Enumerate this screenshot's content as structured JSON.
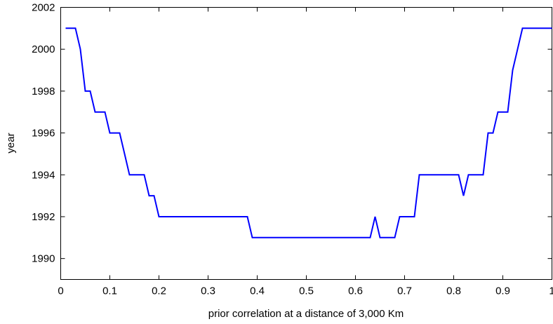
{
  "chart_data": {
    "type": "line",
    "title": "",
    "xlabel": "prior correlation at a distance of 3,000 Km",
    "ylabel": "year",
    "xlim": [
      0,
      1
    ],
    "ylim": [
      1989,
      2002
    ],
    "grid": false,
    "legend": "none",
    "line_color": "#0000ff",
    "x_ticks": [
      0,
      0.1,
      0.2,
      0.3,
      0.4,
      0.5,
      0.6,
      0.7,
      0.8,
      0.9,
      1
    ],
    "x_tick_labels": [
      "0",
      "0.1",
      "0.2",
      "0.3",
      "0.4",
      "0.5",
      "0.6",
      "0.7",
      "0.8",
      "0.9",
      "1"
    ],
    "y_ticks": [
      1990,
      1992,
      1994,
      1996,
      1998,
      2000,
      2002
    ],
    "y_tick_labels": [
      "1990",
      "1992",
      "1994",
      "1996",
      "1998",
      "2000",
      "2002"
    ],
    "series": [
      {
        "x": [
          0.01,
          0.02,
          0.03,
          0.04,
          0.05,
          0.06,
          0.07,
          0.08,
          0.09,
          0.1,
          0.11,
          0.12,
          0.13,
          0.14,
          0.15,
          0.16,
          0.17,
          0.18,
          0.19,
          0.2,
          0.21,
          0.22,
          0.23,
          0.24,
          0.25,
          0.26,
          0.27,
          0.28,
          0.29,
          0.3,
          0.31,
          0.32,
          0.33,
          0.34,
          0.35,
          0.36,
          0.37,
          0.38,
          0.39,
          0.4,
          0.41,
          0.42,
          0.43,
          0.44,
          0.45,
          0.46,
          0.47,
          0.48,
          0.49,
          0.5,
          0.51,
          0.52,
          0.53,
          0.54,
          0.55,
          0.56,
          0.57,
          0.58,
          0.59,
          0.6,
          0.61,
          0.62,
          0.63,
          0.64,
          0.65,
          0.66,
          0.67,
          0.68,
          0.69,
          0.7,
          0.71,
          0.72,
          0.73,
          0.74,
          0.75,
          0.76,
          0.77,
          0.78,
          0.79,
          0.8,
          0.81,
          0.82,
          0.83,
          0.84,
          0.85,
          0.86,
          0.87,
          0.88,
          0.89,
          0.9,
          0.91,
          0.92,
          0.93,
          0.94,
          0.95,
          0.96,
          0.97,
          0.98,
          0.99,
          1.0
        ],
        "values": [
          2001,
          2001,
          2001,
          2000,
          1998,
          1998,
          1997,
          1997,
          1997,
          1996,
          1996,
          1996,
          1995,
          1994,
          1994,
          1994,
          1994,
          1993,
          1993,
          1992,
          1992,
          1992,
          1992,
          1992,
          1992,
          1992,
          1992,
          1992,
          1992,
          1992,
          1992,
          1992,
          1992,
          1992,
          1992,
          1992,
          1992,
          1992,
          1991,
          1991,
          1991,
          1991,
          1991,
          1991,
          1991,
          1991,
          1991,
          1991,
          1991,
          1991,
          1991,
          1991,
          1991,
          1991,
          1991,
          1991,
          1991,
          1991,
          1991,
          1991,
          1991,
          1991,
          1991,
          1992,
          1991,
          1991,
          1991,
          1991,
          1992,
          1992,
          1992,
          1992,
          1994,
          1994,
          1994,
          1994,
          1994,
          1994,
          1994,
          1994,
          1994,
          1993,
          1994,
          1994,
          1994,
          1994,
          1996,
          1996,
          1997,
          1997,
          1997,
          1999,
          2000,
          2001,
          2001,
          2001,
          2001,
          2001,
          2001,
          2001
        ]
      }
    ]
  }
}
